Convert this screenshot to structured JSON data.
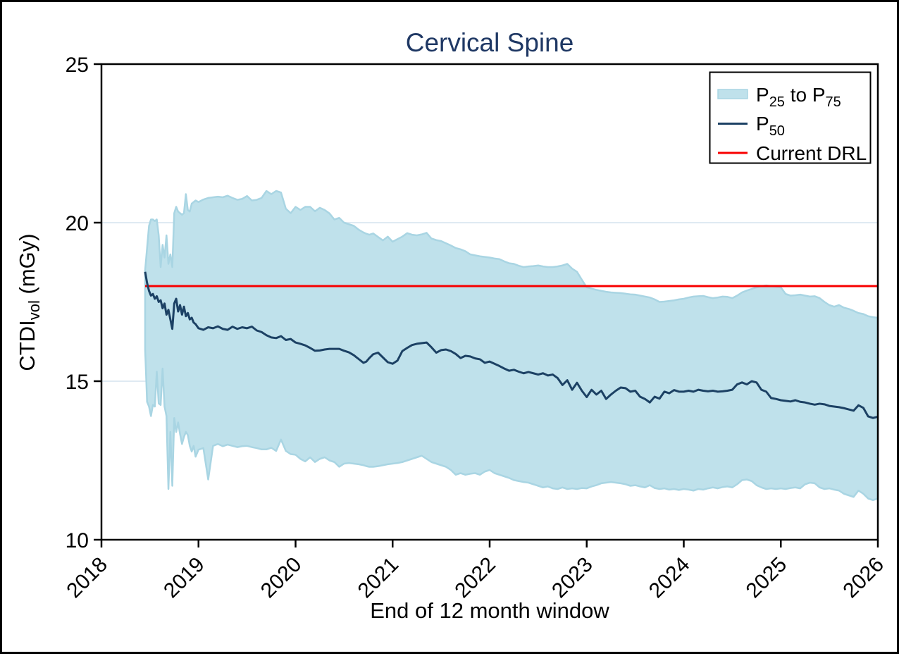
{
  "figure": {
    "title": "Cervical Spine"
  },
  "axes": {
    "x_label": "End of 12 month window",
    "y_label_parts": [
      {
        "t": "CTDI"
      },
      {
        "sub": "vol"
      },
      {
        "t": " (mGy)"
      }
    ],
    "x_ticks": [
      2018,
      2019,
      2020,
      2021,
      2022,
      2023,
      2024,
      2025,
      2026
    ],
    "y_ticks": [
      25,
      20,
      15,
      10
    ]
  },
  "legend": {
    "entries": [
      {
        "swatch": "band",
        "parts": [
          {
            "t": "P"
          },
          {
            "sub": "25"
          },
          {
            "t": " to P"
          },
          {
            "sub": "75"
          }
        ]
      },
      {
        "swatch": "line",
        "parts": [
          {
            "t": "P"
          },
          {
            "sub": "50"
          }
        ]
      },
      {
        "swatch": "drl",
        "parts": [
          {
            "t": "Current DRL"
          }
        ]
      }
    ]
  },
  "colors": {
    "band_fill": "#bfe1eb",
    "band_edge": "#a9d5e3",
    "p50_line": "#1c4164",
    "drl_line": "#f80000",
    "title": "#1f3864",
    "grid": "#dfeaf2",
    "axis": "#000000"
  },
  "chart_data": {
    "type": "line",
    "title": "Cervical Spine",
    "xlabel": "End of 12 month window",
    "ylabel": "CTDIvol (mGy)",
    "xlim": [
      2018,
      2026
    ],
    "ylim": [
      10,
      25
    ],
    "grid_y": [
      20,
      15
    ],
    "legend_position": "top-right",
    "band": {
      "lower": "P25",
      "upper": "P75"
    },
    "reference_line": {
      "name": "Current DRL",
      "value": 18,
      "x_start": 2018.45,
      "x_end": 2026
    },
    "x": [
      2018.45,
      2018.47,
      2018.49,
      2018.51,
      2018.53,
      2018.55,
      2018.57,
      2018.59,
      2018.61,
      2018.63,
      2018.65,
      2018.67,
      2018.69,
      2018.71,
      2018.73,
      2018.75,
      2018.77,
      2018.79,
      2018.81,
      2018.83,
      2018.85,
      2018.87,
      2018.89,
      2018.91,
      2018.93,
      2018.95,
      2018.97,
      2019.0,
      2019.05,
      2019.1,
      2019.15,
      2019.2,
      2019.25,
      2019.3,
      2019.35,
      2019.4,
      2019.45,
      2019.5,
      2019.55,
      2019.6,
      2019.65,
      2019.7,
      2019.75,
      2019.8,
      2019.85,
      2019.9,
      2019.95,
      2020.0,
      2020.05,
      2020.1,
      2020.15,
      2020.2,
      2020.25,
      2020.3,
      2020.35,
      2020.4,
      2020.45,
      2020.5,
      2020.55,
      2020.6,
      2020.65,
      2020.7,
      2020.73,
      2020.76,
      2020.8,
      2020.85,
      2020.9,
      2020.95,
      2021.0,
      2021.05,
      2021.1,
      2021.15,
      2021.2,
      2021.25,
      2021.3,
      2021.35,
      2021.4,
      2021.45,
      2021.5,
      2021.55,
      2021.6,
      2021.65,
      2021.7,
      2021.75,
      2021.8,
      2021.85,
      2021.9,
      2021.95,
      2022.0,
      2022.05,
      2022.1,
      2022.15,
      2022.2,
      2022.25,
      2022.3,
      2022.35,
      2022.4,
      2022.45,
      2022.5,
      2022.55,
      2022.6,
      2022.65,
      2022.7,
      2022.75,
      2022.8,
      2022.85,
      2022.9,
      2022.95,
      2023.0,
      2023.05,
      2023.1,
      2023.15,
      2023.2,
      2023.25,
      2023.3,
      2023.35,
      2023.4,
      2023.45,
      2023.5,
      2023.55,
      2023.6,
      2023.65,
      2023.7,
      2023.75,
      2023.8,
      2023.85,
      2023.9,
      2023.95,
      2024.0,
      2024.05,
      2024.1,
      2024.15,
      2024.2,
      2024.25,
      2024.3,
      2024.35,
      2024.4,
      2024.45,
      2024.5,
      2024.55,
      2024.6,
      2024.65,
      2024.7,
      2024.75,
      2024.8,
      2024.85,
      2024.9,
      2024.95,
      2025.0,
      2025.05,
      2025.1,
      2025.15,
      2025.2,
      2025.25,
      2025.3,
      2025.35,
      2025.4,
      2025.45,
      2025.5,
      2025.55,
      2025.6,
      2025.65,
      2025.7,
      2025.75,
      2025.8,
      2025.85,
      2025.9,
      2025.95,
      2026.0
    ],
    "series": [
      {
        "name": "P25",
        "values": [
          16.0,
          14.35,
          14.2,
          13.9,
          14.25,
          14.2,
          15.3,
          14.3,
          14.25,
          15.4,
          14.2,
          13.9,
          11.6,
          13.4,
          11.7,
          13.84,
          13.4,
          13.7,
          13.33,
          13.02,
          13.24,
          13.4,
          13.3,
          12.96,
          12.78,
          12.96,
          12.62,
          12.84,
          12.89,
          11.9,
          12.96,
          13.02,
          12.95,
          13.0,
          12.96,
          12.92,
          12.95,
          12.96,
          12.92,
          12.89,
          12.85,
          12.85,
          12.9,
          12.8,
          13.16,
          12.8,
          12.7,
          12.68,
          12.55,
          12.47,
          12.6,
          12.45,
          12.55,
          12.6,
          12.5,
          12.45,
          12.3,
          12.4,
          12.42,
          12.4,
          12.38,
          12.35,
          12.32,
          12.3,
          12.3,
          12.32,
          12.35,
          12.38,
          12.4,
          12.42,
          12.45,
          12.5,
          12.55,
          12.6,
          12.65,
          12.55,
          12.45,
          12.4,
          12.35,
          12.3,
          12.2,
          12.05,
          12.1,
          12.05,
          12.08,
          12.1,
          12.05,
          12.15,
          12.2,
          12.1,
          12.05,
          12.0,
          11.95,
          11.88,
          11.85,
          11.82,
          11.8,
          11.75,
          11.7,
          11.65,
          11.68,
          11.62,
          11.6,
          11.65,
          11.6,
          11.62,
          11.6,
          11.63,
          11.62,
          11.68,
          11.72,
          11.78,
          11.8,
          11.82,
          11.8,
          11.78,
          11.75,
          11.7,
          11.72,
          11.68,
          11.65,
          11.72,
          11.63,
          11.6,
          11.62,
          11.58,
          11.6,
          11.57,
          11.6,
          11.58,
          11.55,
          11.6,
          11.58,
          11.62,
          11.65,
          11.62,
          11.66,
          11.68,
          11.65,
          11.75,
          11.88,
          11.9,
          11.85,
          11.72,
          11.65,
          11.6,
          11.62,
          11.6,
          11.62,
          11.6,
          11.63,
          11.65,
          11.62,
          11.75,
          11.8,
          11.78,
          11.65,
          11.6,
          11.62,
          11.58,
          11.55,
          11.45,
          11.4,
          11.35,
          11.55,
          11.45,
          11.3,
          11.25,
          11.3
        ]
      },
      {
        "name": "P50",
        "values": [
          18.45,
          18.1,
          17.85,
          17.7,
          17.75,
          17.6,
          17.68,
          17.5,
          17.55,
          17.3,
          17.45,
          17.1,
          17.25,
          16.95,
          16.65,
          17.45,
          17.6,
          17.2,
          17.4,
          17.1,
          17.35,
          17.05,
          17.15,
          16.95,
          17.0,
          16.85,
          16.8,
          16.67,
          16.62,
          16.7,
          16.67,
          16.73,
          16.65,
          16.62,
          16.72,
          16.65,
          16.7,
          16.67,
          16.72,
          16.6,
          16.55,
          16.45,
          16.38,
          16.36,
          16.42,
          16.3,
          16.33,
          16.22,
          16.18,
          16.13,
          16.05,
          15.96,
          15.97,
          16.0,
          16.02,
          16.02,
          16.02,
          15.96,
          15.91,
          15.82,
          15.7,
          15.58,
          15.62,
          15.73,
          15.85,
          15.9,
          15.75,
          15.6,
          15.55,
          15.65,
          15.95,
          16.05,
          16.14,
          16.18,
          16.2,
          16.22,
          16.07,
          15.9,
          15.98,
          16.0,
          15.95,
          15.86,
          15.73,
          15.8,
          15.78,
          15.72,
          15.69,
          15.58,
          15.62,
          15.55,
          15.48,
          15.4,
          15.33,
          15.36,
          15.3,
          15.25,
          15.29,
          15.25,
          15.21,
          15.25,
          15.18,
          15.21,
          15.1,
          14.88,
          15.03,
          14.73,
          14.95,
          14.7,
          14.5,
          14.73,
          14.58,
          14.7,
          14.44,
          14.58,
          14.7,
          14.8,
          14.78,
          14.67,
          14.7,
          14.51,
          14.44,
          14.33,
          14.51,
          14.45,
          14.67,
          14.62,
          14.72,
          14.67,
          14.67,
          14.7,
          14.67,
          14.73,
          14.7,
          14.68,
          14.7,
          14.67,
          14.68,
          14.7,
          14.73,
          14.9,
          14.96,
          14.9,
          15.0,
          14.96,
          14.73,
          14.67,
          14.47,
          14.44,
          14.4,
          14.38,
          14.36,
          14.4,
          14.35,
          14.33,
          14.29,
          14.26,
          14.29,
          14.27,
          14.22,
          14.2,
          14.18,
          14.15,
          14.11,
          14.07,
          14.24,
          14.16,
          13.89,
          13.84,
          13.88
        ]
      },
      {
        "name": "P75",
        "values": [
          18.5,
          19.2,
          19.9,
          20.1,
          20.1,
          20.05,
          20.1,
          19.6,
          18.6,
          19.3,
          18.9,
          19.6,
          18.7,
          19.0,
          18.6,
          20.3,
          20.5,
          20.35,
          20.3,
          20.25,
          20.3,
          20.9,
          20.4,
          20.35,
          20.6,
          20.65,
          20.7,
          20.65,
          20.73,
          20.78,
          20.8,
          20.82,
          20.8,
          20.85,
          20.78,
          20.72,
          20.75,
          20.84,
          20.7,
          20.72,
          20.78,
          21.0,
          20.9,
          21.0,
          20.95,
          20.44,
          20.3,
          20.5,
          20.4,
          20.5,
          20.5,
          20.36,
          20.47,
          20.4,
          20.29,
          20.1,
          20.15,
          20.0,
          19.95,
          19.9,
          19.78,
          19.69,
          19.65,
          19.62,
          19.66,
          19.55,
          19.44,
          19.56,
          19.4,
          19.48,
          19.56,
          19.67,
          19.62,
          19.6,
          19.63,
          19.68,
          19.5,
          19.45,
          19.42,
          19.35,
          19.28,
          19.2,
          19.16,
          19.1,
          19.0,
          18.97,
          18.94,
          18.92,
          18.9,
          18.87,
          18.85,
          18.78,
          18.72,
          18.7,
          18.64,
          18.6,
          18.62,
          18.63,
          18.65,
          18.62,
          18.6,
          18.6,
          18.62,
          18.65,
          18.7,
          18.55,
          18.45,
          18.2,
          17.96,
          17.92,
          17.88,
          17.85,
          17.82,
          17.8,
          17.79,
          17.78,
          17.76,
          17.74,
          17.73,
          17.7,
          17.67,
          17.64,
          17.58,
          17.5,
          17.51,
          17.53,
          17.55,
          17.58,
          17.6,
          17.64,
          17.67,
          17.68,
          17.69,
          17.65,
          17.62,
          17.64,
          17.67,
          17.66,
          17.62,
          17.7,
          17.8,
          17.86,
          17.91,
          17.96,
          18.0,
          18.02,
          18.0,
          17.98,
          17.96,
          17.75,
          17.7,
          17.71,
          17.73,
          17.7,
          17.67,
          17.68,
          17.62,
          17.5,
          17.4,
          17.35,
          17.4,
          17.32,
          17.28,
          17.22,
          17.15,
          17.12,
          17.05,
          17.02,
          17.0
        ]
      }
    ]
  }
}
